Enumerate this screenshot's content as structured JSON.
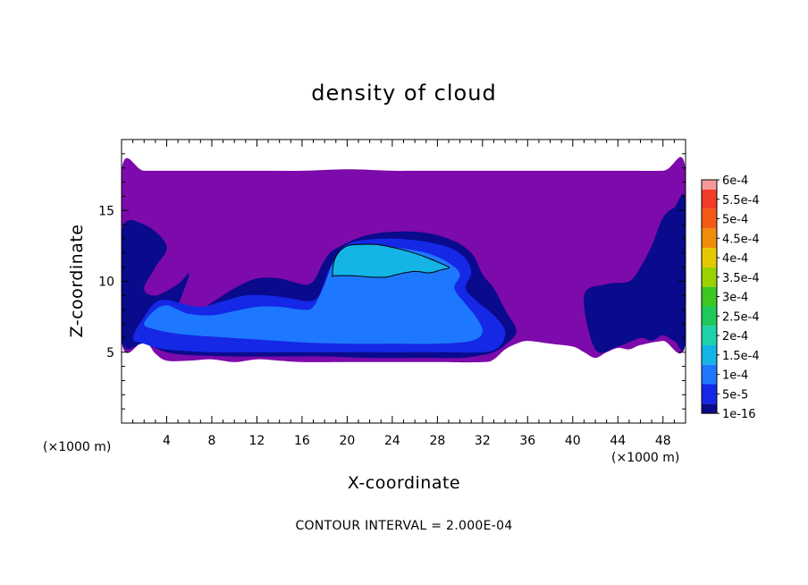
{
  "chart_data": {
    "type": "heatmap",
    "title": "density of cloud",
    "xlabel": "X-coordinate",
    "ylabel": "Z-coordinate",
    "x_unit": "(×1000 m)",
    "z_unit": "(×1000 m)",
    "xlim": [
      0,
      50
    ],
    "ylim": [
      0,
      20
    ],
    "x_ticks": [
      4,
      8,
      12,
      16,
      20,
      24,
      28,
      32,
      36,
      40,
      44,
      48
    ],
    "y_ticks": [
      5,
      10,
      15
    ],
    "contour_interval_label": "CONTOUR INTERVAL = 2.000E-04",
    "colorbar": {
      "labels": [
        "6e-4",
        "5.5e-4",
        "5e-4",
        "4.5e-4",
        "4e-4",
        "3.5e-4",
        "3e-4",
        "2.5e-4",
        "2e-4",
        "1.5e-4",
        "1e-4",
        "5e-5",
        "1e-16"
      ],
      "colors": [
        "#f59a9a",
        "#f03c28",
        "#f55a14",
        "#f08c0a",
        "#e6c800",
        "#9ad200",
        "#3cc81e",
        "#1ec85a",
        "#1ed2aa",
        "#14b4e6",
        "#1e78ff",
        "#1428e6",
        "#0a0a8c",
        "#7d0aaa"
      ]
    },
    "contour_line": {
      "level": "2e-4",
      "x": [
        18.7,
        18.8,
        19.2,
        20.0,
        21.0,
        22.5,
        24.0,
        25.5,
        27.0,
        28.2,
        29.0,
        28.9,
        28.3,
        27.3,
        26.0,
        24.5,
        23.5,
        22.0,
        20.5,
        19.3,
        18.8
      ],
      "z": [
        10.4,
        11.3,
        12.0,
        12.5,
        12.6,
        12.6,
        12.4,
        12.1,
        11.7,
        11.3,
        11.0,
        10.9,
        10.8,
        10.6,
        10.7,
        10.5,
        10.3,
        10.3,
        10.4,
        10.4,
        10.4
      ]
    },
    "regions": [
      {
        "level": "1e-16",
        "x": [
          0,
          2,
          5,
          8,
          12,
          16,
          20,
          24,
          26,
          28,
          30,
          32,
          34,
          36,
          40,
          44,
          48,
          50,
          50,
          48,
          46,
          45,
          44,
          43,
          42,
          41,
          40,
          38,
          36,
          35,
          34,
          33,
          32,
          28,
          24,
          20,
          16,
          14,
          12,
          10,
          8,
          6,
          4,
          3,
          2,
          0
        ],
        "z": [
          17.8,
          17.8,
          17.8,
          17.8,
          17.8,
          17.8,
          17.9,
          17.8,
          17.8,
          17.8,
          17.8,
          17.8,
          17.8,
          17.8,
          17.8,
          17.8,
          17.8,
          17.9,
          5.8,
          5.8,
          5.5,
          5.2,
          5.3,
          5.0,
          4.6,
          5.0,
          5.4,
          5.6,
          5.8,
          5.6,
          5.2,
          4.5,
          4.3,
          4.3,
          4.3,
          4.3,
          4.3,
          4.4,
          4.5,
          4.3,
          4.5,
          4.4,
          4.4,
          4.9,
          5.8,
          5.8
        ]
      },
      {
        "level": "5e-5",
        "x": [
          0,
          2,
          4,
          3,
          2,
          3,
          5,
          6,
          5,
          6,
          8,
          10,
          12,
          14,
          16,
          17,
          18,
          19,
          22,
          26,
          29,
          31,
          32,
          33,
          34,
          35,
          34,
          33,
          32,
          30,
          26,
          22,
          18,
          14,
          10,
          6,
          4,
          2,
          0
        ],
        "z": [
          13.5,
          14.0,
          12.5,
          11.0,
          9.5,
          9.0,
          9.8,
          10.5,
          8.0,
          7.5,
          8.5,
          9.5,
          10.2,
          10.2,
          9.8,
          10.0,
          11.5,
          12.3,
          13.3,
          13.5,
          13.0,
          12.0,
          10.5,
          9.5,
          8.0,
          6.5,
          5.5,
          5.0,
          4.8,
          4.6,
          4.6,
          4.6,
          4.7,
          4.7,
          4.7,
          4.8,
          5.0,
          5.6,
          5.8
        ]
      },
      {
        "level": "5e-5",
        "x": [
          41,
          43,
          45,
          46,
          47,
          48,
          49,
          50,
          50,
          49,
          48,
          47,
          46,
          44,
          42
        ],
        "z": [
          9.0,
          9.8,
          10.0,
          11.0,
          12.5,
          14.5,
          15.2,
          15.5,
          5.8,
          5.8,
          6.2,
          5.8,
          6.0,
          5.4,
          5.2
        ]
      },
      {
        "level": "1e-4",
        "x": [
          1,
          2,
          3,
          4,
          5,
          7,
          9,
          11,
          13,
          15,
          16.5,
          17.5,
          18.5,
          20,
          23,
          26,
          29,
          30.5,
          31,
          30.5,
          31.5,
          33,
          34,
          33.5,
          32,
          28,
          24,
          20,
          16,
          12,
          8,
          4,
          2
        ],
        "z": [
          6.0,
          7.5,
          8.5,
          8.7,
          8.5,
          8.2,
          8.6,
          9.0,
          9.0,
          8.8,
          8.6,
          9.0,
          11.0,
          12.6,
          13.0,
          12.9,
          12.4,
          11.6,
          10.6,
          9.5,
          8.6,
          7.6,
          6.5,
          5.4,
          5.0,
          5.0,
          5.0,
          5.0,
          5.0,
          5.0,
          5.0,
          5.2,
          5.6
        ]
      },
      {
        "level": "1.5e-4",
        "x": [
          2,
          3,
          4,
          5,
          6,
          8,
          10,
          12,
          14,
          16,
          17,
          18,
          19,
          21,
          24,
          27,
          29,
          30,
          29.5,
          30.5,
          31.5,
          32,
          31,
          28,
          24,
          20,
          16,
          12,
          8,
          5,
          3
        ],
        "z": [
          7.0,
          8.0,
          8.3,
          8.0,
          7.7,
          7.6,
          7.9,
          8.2,
          8.2,
          8.0,
          8.2,
          9.8,
          11.6,
          12.3,
          12.4,
          12.0,
          11.3,
          10.5,
          9.5,
          8.4,
          7.4,
          6.4,
          5.8,
          5.6,
          5.6,
          5.6,
          5.7,
          5.9,
          6.1,
          6.3,
          6.6
        ]
      },
      {
        "level": "2e-4",
        "x": [
          18.7,
          18.8,
          19.2,
          20.0,
          21.0,
          22.5,
          24.0,
          25.5,
          27.0,
          28.2,
          29.0,
          28.9,
          28.3,
          27.3,
          26.0,
          24.5,
          23.5,
          22.0,
          20.5,
          19.3
        ],
        "z": [
          10.4,
          11.3,
          12.0,
          12.5,
          12.6,
          12.6,
          12.4,
          12.1,
          11.7,
          11.3,
          11.0,
          10.9,
          10.8,
          10.6,
          10.7,
          10.5,
          10.3,
          10.3,
          10.4,
          10.4
        ]
      }
    ]
  }
}
